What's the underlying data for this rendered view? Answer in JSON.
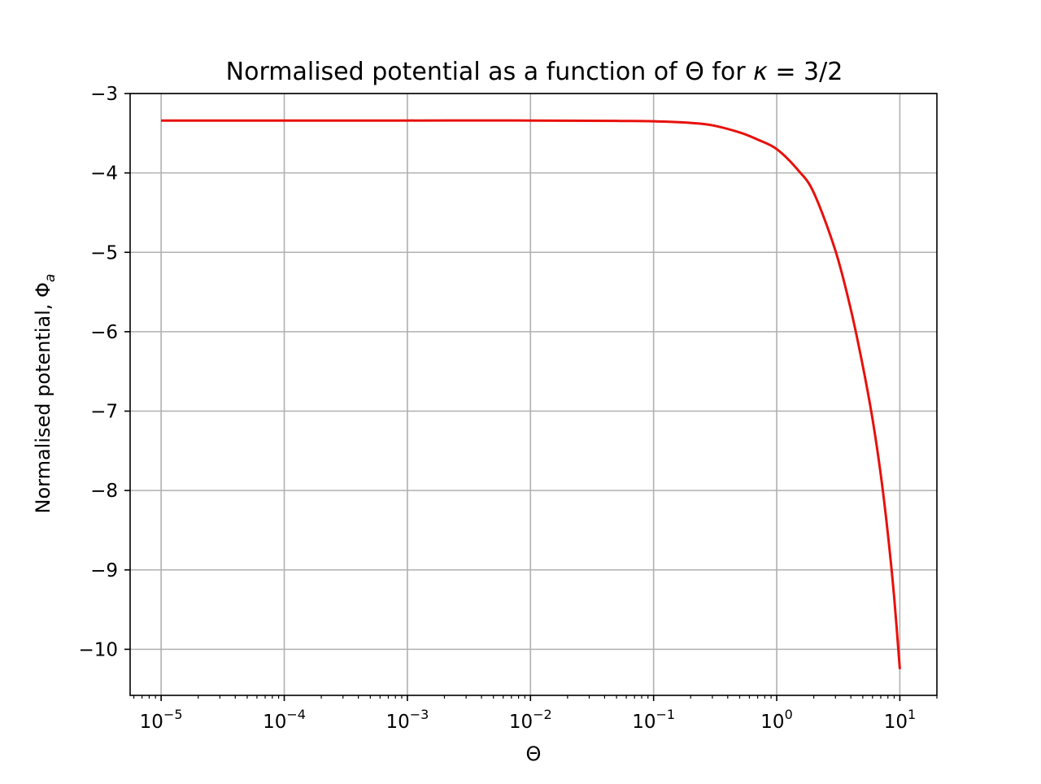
{
  "chart_data": {
    "type": "line",
    "title": {
      "prefix": "Normalised potential as a function of Θ for ",
      "symbol": "κ",
      "suffix": " = 3/2"
    },
    "xlabel": "Θ",
    "ylabel": {
      "main": "Normalised potential, Φ",
      "subscript": "a"
    },
    "x_scale": "log",
    "x_range": [
      5.6e-06,
      20
    ],
    "y_range": [
      -10.58,
      -3
    ],
    "x_ticks": [
      {
        "value": 1e-05,
        "base": "10",
        "exp": "−5"
      },
      {
        "value": 0.0001,
        "base": "10",
        "exp": "−4"
      },
      {
        "value": 0.001,
        "base": "10",
        "exp": "−3"
      },
      {
        "value": 0.01,
        "base": "10",
        "exp": "−2"
      },
      {
        "value": 0.1,
        "base": "10",
        "exp": "−1"
      },
      {
        "value": 1,
        "base": "10",
        "exp": "0"
      },
      {
        "value": 10,
        "base": "10",
        "exp": "1"
      }
    ],
    "y_ticks": [
      {
        "value": -3,
        "label": "−3"
      },
      {
        "value": -4,
        "label": "−4"
      },
      {
        "value": -5,
        "label": "−5"
      },
      {
        "value": -6,
        "label": "−6"
      },
      {
        "value": -7,
        "label": "−7"
      },
      {
        "value": -8,
        "label": "−8"
      },
      {
        "value": -9,
        "label": "−9"
      },
      {
        "value": -10,
        "label": "−10"
      }
    ],
    "grid": true,
    "legend": "none",
    "series": [
      {
        "color": "#e8100b",
        "x": [
          1e-05,
          0.0001,
          0.001,
          0.01,
          0.05,
          0.1,
          0.2,
          0.3,
          0.5,
          0.7,
          1.0,
          1.5,
          2.0,
          3.0,
          4.0,
          5.0,
          6.0,
          7.0,
          8.0,
          9.0,
          10.0
        ],
        "y": [
          -3.34,
          -3.34,
          -3.34,
          -3.34,
          -3.345,
          -3.35,
          -3.37,
          -3.4,
          -3.49,
          -3.58,
          -3.7,
          -3.97,
          -4.25,
          -4.98,
          -5.72,
          -6.43,
          -7.1,
          -7.8,
          -8.55,
          -9.35,
          -10.25
        ]
      }
    ]
  }
}
